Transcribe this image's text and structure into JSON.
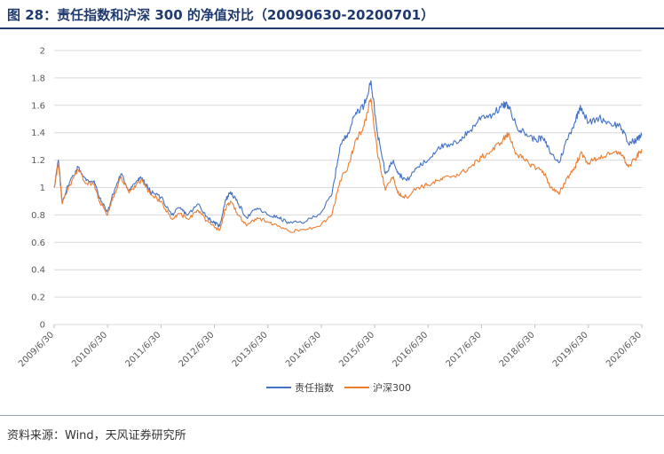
{
  "title": "图 28：责任指数和沪深 300 的净值对比（20090630-20200701）",
  "source": "资料来源：Wind，天风证券研究所",
  "chart_data": {
    "type": "line",
    "yticks": [
      "0",
      "0.2",
      "0.4",
      "0.6",
      "0.8",
      "1",
      "1.2",
      "1.4",
      "1.6",
      "1.8",
      "2"
    ],
    "ylim": [
      0,
      2
    ],
    "xticks": [
      "2009/6/30",
      "2010/6/30",
      "2011/6/30",
      "2012/6/30",
      "2013/6/30",
      "2014/6/30",
      "2015/6/30",
      "2016/6/30",
      "2017/6/30",
      "2018/6/30",
      "2019/6/30",
      "2020/6/30"
    ],
    "xlim": [
      0,
      11
    ],
    "grid": true,
    "legend_position": "bottom",
    "series": [
      {
        "name": "责任指数",
        "color": "#4472c4",
        "points": [
          [
            0,
            1.0
          ],
          [
            0.08,
            1.2
          ],
          [
            0.15,
            0.9
          ],
          [
            0.3,
            1.05
          ],
          [
            0.45,
            1.15
          ],
          [
            0.6,
            1.05
          ],
          [
            0.75,
            1.05
          ],
          [
            0.85,
            0.92
          ],
          [
            1.0,
            0.82
          ],
          [
            1.1,
            0.95
          ],
          [
            1.25,
            1.1
          ],
          [
            1.4,
            0.98
          ],
          [
            1.55,
            1.05
          ],
          [
            1.65,
            1.07
          ],
          [
            1.8,
            0.97
          ],
          [
            2.0,
            0.93
          ],
          [
            2.2,
            0.8
          ],
          [
            2.35,
            0.85
          ],
          [
            2.5,
            0.8
          ],
          [
            2.7,
            0.88
          ],
          [
            2.85,
            0.79
          ],
          [
            3.0,
            0.74
          ],
          [
            3.1,
            0.72
          ],
          [
            3.2,
            0.9
          ],
          [
            3.3,
            0.97
          ],
          [
            3.45,
            0.88
          ],
          [
            3.6,
            0.78
          ],
          [
            3.8,
            0.85
          ],
          [
            4.0,
            0.8
          ],
          [
            4.2,
            0.78
          ],
          [
            4.4,
            0.74
          ],
          [
            4.7,
            0.75
          ],
          [
            5.0,
            0.82
          ],
          [
            5.2,
            0.95
          ],
          [
            5.35,
            1.3
          ],
          [
            5.5,
            1.4
          ],
          [
            5.65,
            1.55
          ],
          [
            5.8,
            1.6
          ],
          [
            5.93,
            1.78
          ],
          [
            6.05,
            1.4
          ],
          [
            6.2,
            1.1
          ],
          [
            6.35,
            1.2
          ],
          [
            6.45,
            1.1
          ],
          [
            6.6,
            1.05
          ],
          [
            6.8,
            1.15
          ],
          [
            7.0,
            1.2
          ],
          [
            7.2,
            1.3
          ],
          [
            7.4,
            1.3
          ],
          [
            7.6,
            1.35
          ],
          [
            7.8,
            1.42
          ],
          [
            8.0,
            1.52
          ],
          [
            8.2,
            1.53
          ],
          [
            8.4,
            1.6
          ],
          [
            8.5,
            1.6
          ],
          [
            8.65,
            1.45
          ],
          [
            8.8,
            1.4
          ],
          [
            9.0,
            1.35
          ],
          [
            9.15,
            1.36
          ],
          [
            9.3,
            1.25
          ],
          [
            9.45,
            1.18
          ],
          [
            9.6,
            1.35
          ],
          [
            9.75,
            1.48
          ],
          [
            9.85,
            1.6
          ],
          [
            10.0,
            1.47
          ],
          [
            10.2,
            1.51
          ],
          [
            10.4,
            1.47
          ],
          [
            10.6,
            1.45
          ],
          [
            10.75,
            1.32
          ],
          [
            10.9,
            1.35
          ],
          [
            11.0,
            1.38
          ]
        ]
      },
      {
        "name": "沪深300",
        "color": "#ed7d31",
        "points": [
          [
            0,
            1.0
          ],
          [
            0.08,
            1.18
          ],
          [
            0.15,
            0.88
          ],
          [
            0.3,
            1.02
          ],
          [
            0.45,
            1.13
          ],
          [
            0.6,
            1.03
          ],
          [
            0.75,
            1.02
          ],
          [
            0.85,
            0.9
          ],
          [
            1.0,
            0.8
          ],
          [
            1.1,
            0.93
          ],
          [
            1.25,
            1.08
          ],
          [
            1.4,
            0.96
          ],
          [
            1.55,
            1.03
          ],
          [
            1.65,
            1.05
          ],
          [
            1.8,
            0.95
          ],
          [
            2.0,
            0.9
          ],
          [
            2.2,
            0.77
          ],
          [
            2.35,
            0.81
          ],
          [
            2.5,
            0.77
          ],
          [
            2.7,
            0.83
          ],
          [
            2.85,
            0.76
          ],
          [
            3.0,
            0.71
          ],
          [
            3.1,
            0.69
          ],
          [
            3.2,
            0.84
          ],
          [
            3.3,
            0.9
          ],
          [
            3.45,
            0.8
          ],
          [
            3.6,
            0.72
          ],
          [
            3.8,
            0.78
          ],
          [
            4.0,
            0.75
          ],
          [
            4.2,
            0.72
          ],
          [
            4.4,
            0.68
          ],
          [
            4.7,
            0.69
          ],
          [
            5.0,
            0.73
          ],
          [
            5.2,
            0.8
          ],
          [
            5.35,
            1.05
          ],
          [
            5.5,
            1.15
          ],
          [
            5.65,
            1.35
          ],
          [
            5.8,
            1.45
          ],
          [
            5.93,
            1.65
          ],
          [
            6.05,
            1.25
          ],
          [
            6.2,
            0.98
          ],
          [
            6.35,
            1.08
          ],
          [
            6.45,
            0.95
          ],
          [
            6.6,
            0.93
          ],
          [
            6.8,
            1.0
          ],
          [
            7.0,
            1.02
          ],
          [
            7.2,
            1.05
          ],
          [
            7.4,
            1.08
          ],
          [
            7.6,
            1.1
          ],
          [
            7.8,
            1.15
          ],
          [
            8.0,
            1.22
          ],
          [
            8.2,
            1.27
          ],
          [
            8.4,
            1.35
          ],
          [
            8.5,
            1.39
          ],
          [
            8.65,
            1.25
          ],
          [
            8.8,
            1.2
          ],
          [
            9.0,
            1.15
          ],
          [
            9.15,
            1.12
          ],
          [
            9.3,
            1.0
          ],
          [
            9.45,
            0.95
          ],
          [
            9.6,
            1.07
          ],
          [
            9.75,
            1.15
          ],
          [
            9.85,
            1.25
          ],
          [
            10.0,
            1.18
          ],
          [
            10.2,
            1.22
          ],
          [
            10.4,
            1.24
          ],
          [
            10.6,
            1.26
          ],
          [
            10.75,
            1.15
          ],
          [
            10.9,
            1.22
          ],
          [
            11.0,
            1.28
          ]
        ]
      }
    ]
  }
}
